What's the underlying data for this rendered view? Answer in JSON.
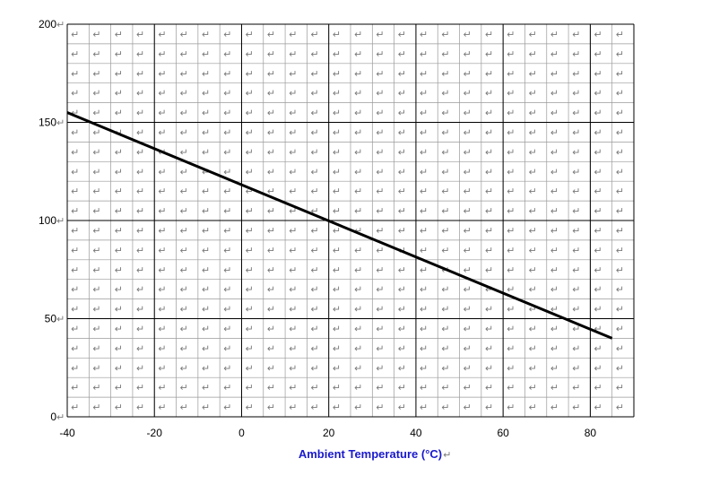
{
  "chart_data": {
    "type": "line",
    "title": "",
    "xlabel": "Ambient Temperature (°C)",
    "ylabel": "",
    "xlim": [
      -40,
      90
    ],
    "ylim": [
      0,
      200
    ],
    "xticks": [
      -40,
      -20,
      0,
      20,
      40,
      60,
      80
    ],
    "yticks": [
      0,
      50,
      100,
      150,
      200
    ],
    "x_minor_step": 5,
    "y_minor_step": 10,
    "grid": true,
    "series": [
      {
        "x": [
          -40,
          85
        ],
        "y": [
          155,
          40
        ],
        "color": "#000000"
      }
    ],
    "return_mark": "↵"
  }
}
